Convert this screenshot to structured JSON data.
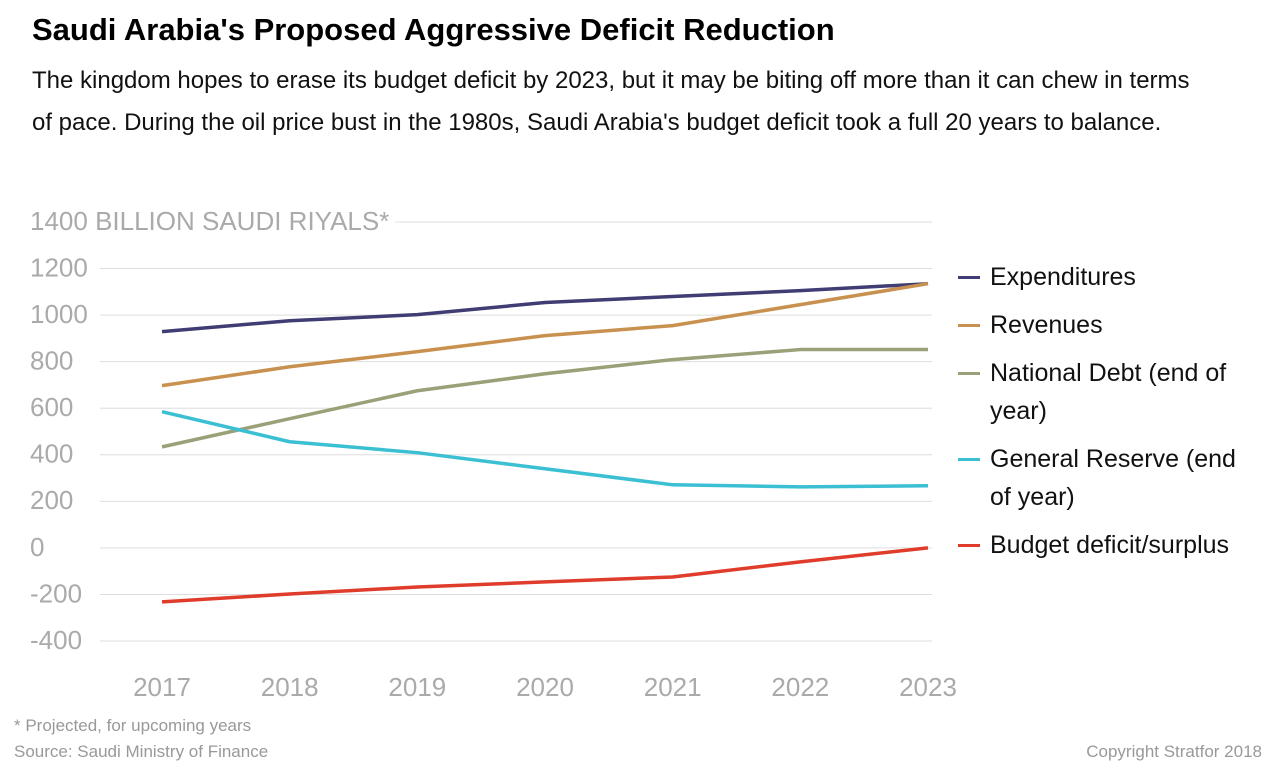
{
  "chart_data": {
    "type": "line",
    "title": "Saudi Arabia's Proposed Aggressive Deficit Reduction",
    "subtitle": "The kingdom hopes to erase its budget deficit by 2023, but it may be biting off more than it can chew in terms of pace. During the oil price bust in the 1980s, Saudi Arabia's budget deficit took a full 20 years to balance.",
    "categories": [
      "2017",
      "2018",
      "2019",
      "2020",
      "2021",
      "2022",
      "2023"
    ],
    "series": [
      {
        "name": "Expenditures",
        "color": "#3f3d73",
        "values": [
          929,
          976,
          1002,
          1054,
          1080,
          1105,
          1135
        ]
      },
      {
        "name": "Revenues",
        "color": "#c8914f",
        "values": [
          697,
          778,
          843,
          912,
          955,
          1045,
          1135
        ]
      },
      {
        "name": "National Debt (end of year)",
        "color": "#9aa078",
        "values": [
          434,
          555,
          675,
          748,
          809,
          852,
          852
        ]
      },
      {
        "name": "General Reserve (end of year)",
        "color": "#3bbfd3",
        "values": [
          585,
          456,
          409,
          340,
          271,
          262,
          267
        ]
      },
      {
        "name": "Budget deficit/surplus",
        "color": "#e03c2c",
        "values": [
          -232,
          -198,
          -168,
          -146,
          -125,
          -60,
          0
        ]
      }
    ],
    "ylim": [
      -400,
      1400
    ],
    "yticks": [
      -400,
      -200,
      0,
      200,
      400,
      600,
      800,
      1000,
      1200,
      {
        "value": 1400,
        "label": "1400 BILLION SAUDI RIYALS*"
      }
    ],
    "grid": true,
    "legend": "right",
    "notes": [
      "* Projected, for upcoming years",
      "Source: Saudi Ministry of Finance"
    ],
    "copyright": "Copyright Stratfor 2018"
  }
}
